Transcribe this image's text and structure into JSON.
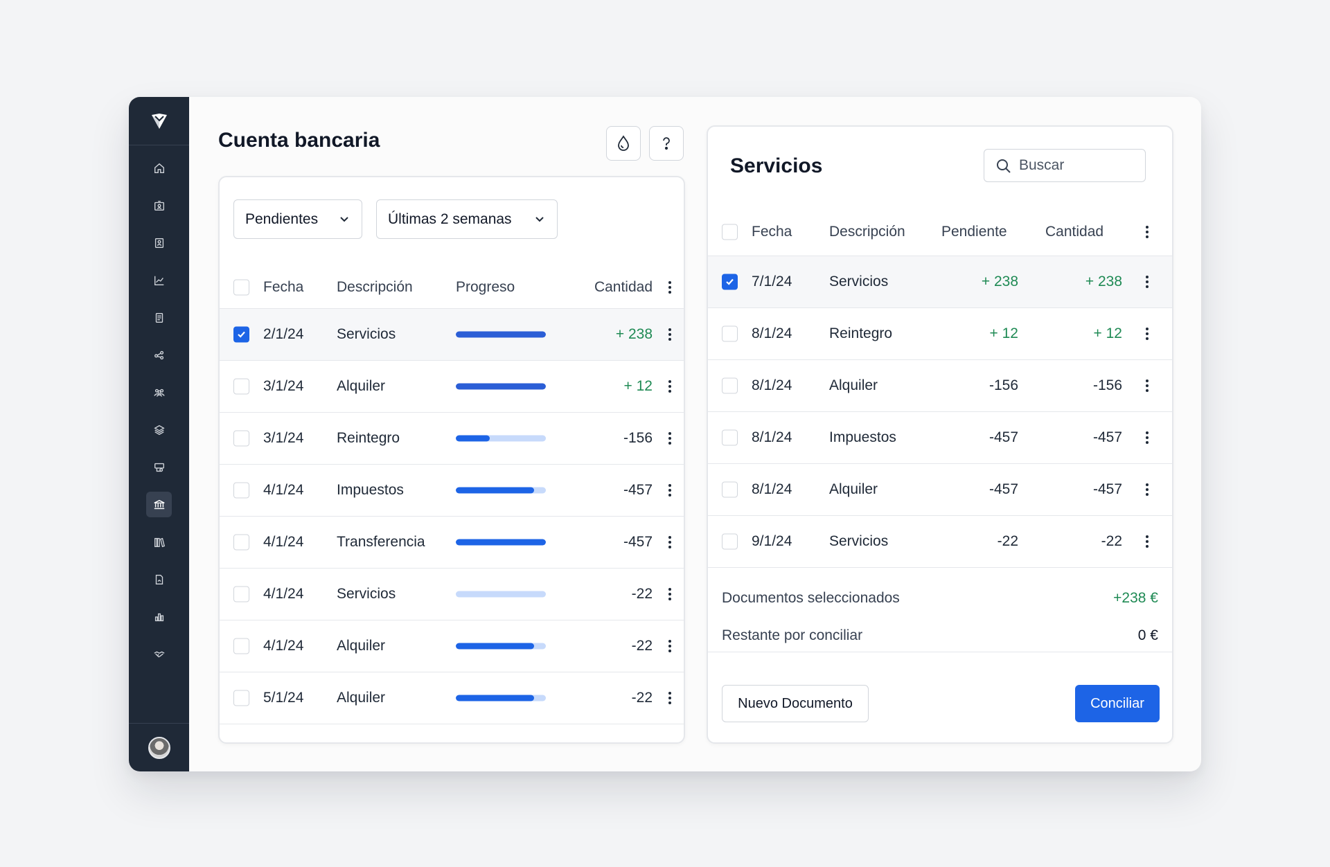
{
  "sidebar": {
    "items": [
      {
        "icon": "home-icon"
      },
      {
        "icon": "id-card-icon"
      },
      {
        "icon": "contacts-icon"
      },
      {
        "icon": "trend-chart-icon"
      },
      {
        "icon": "document-list-icon"
      },
      {
        "icon": "share-icon"
      },
      {
        "icon": "team-icon"
      },
      {
        "icon": "layers-icon"
      },
      {
        "icon": "payment-icon"
      },
      {
        "icon": "bank-icon",
        "active": true
      },
      {
        "icon": "library-icon"
      },
      {
        "icon": "file-icon"
      },
      {
        "icon": "bar-chart-icon"
      },
      {
        "icon": "handshake-icon"
      }
    ]
  },
  "bank": {
    "title": "Cuenta bancaria",
    "filters": {
      "status": "Pendientes",
      "period": "Últimas 2 semanas"
    },
    "columns": {
      "date": "Fecha",
      "description": "Descripción",
      "progress": "Progreso",
      "amount": "Cantidad"
    },
    "rows": [
      {
        "date": "2/1/24",
        "description": "Servicios",
        "progress": 1.0,
        "amount": "+ 238",
        "checked": true
      },
      {
        "date": "3/1/24",
        "description": "Alquiler",
        "progress": 1.0,
        "amount": "+ 12",
        "checked": false
      },
      {
        "date": "3/1/24",
        "description": "Reintegro",
        "progress": 0.38,
        "amount": "-156",
        "checked": false
      },
      {
        "date": "4/1/24",
        "description": "Impuestos",
        "progress": 0.87,
        "amount": "-457",
        "checked": false
      },
      {
        "date": "4/1/24",
        "description": "Transferencia",
        "progress": 1.0,
        "amount": "-457",
        "checked": false
      },
      {
        "date": "4/1/24",
        "description": "Servicios",
        "progress": 0.0,
        "amount": "-22",
        "checked": false
      },
      {
        "date": "4/1/24",
        "description": "Alquiler",
        "progress": 0.87,
        "amount": "-22",
        "checked": false
      },
      {
        "date": "5/1/24",
        "description": "Alquiler",
        "progress": 0.87,
        "amount": "-22",
        "checked": false
      }
    ]
  },
  "services": {
    "title": "Servicios",
    "search_placeholder": "Buscar",
    "columns": {
      "date": "Fecha",
      "description": "Descripción",
      "pending": "Pendiente",
      "amount": "Cantidad"
    },
    "rows": [
      {
        "date": "7/1/24",
        "description": "Servicios",
        "pending": "+ 238",
        "amount": "+ 238",
        "checked": true
      },
      {
        "date": "8/1/24",
        "description": "Reintegro",
        "pending": "+ 12",
        "amount": "+ 12",
        "checked": false
      },
      {
        "date": "8/1/24",
        "description": "Alquiler",
        "pending": "-156",
        "amount": "-156",
        "checked": false
      },
      {
        "date": "8/1/24",
        "description": "Impuestos",
        "pending": "-457",
        "amount": "-457",
        "checked": false
      },
      {
        "date": "8/1/24",
        "description": "Alquiler",
        "pending": "-457",
        "amount": "-457",
        "checked": false
      },
      {
        "date": "9/1/24",
        "description": "Servicios",
        "pending": "-22",
        "amount": "-22",
        "checked": false
      }
    ],
    "summary": {
      "selected_label": "Documentos seleccionados",
      "selected_value": "+238 €",
      "remaining_label": "Restante por conciliar",
      "remaining_value": "0 €"
    },
    "new_document_label": "Nuevo Documento",
    "reconcile_label": "Conciliar"
  },
  "colors": {
    "primary": "#1d64e6",
    "positive": "#1f8a54",
    "sidebar": "#1f2937"
  }
}
